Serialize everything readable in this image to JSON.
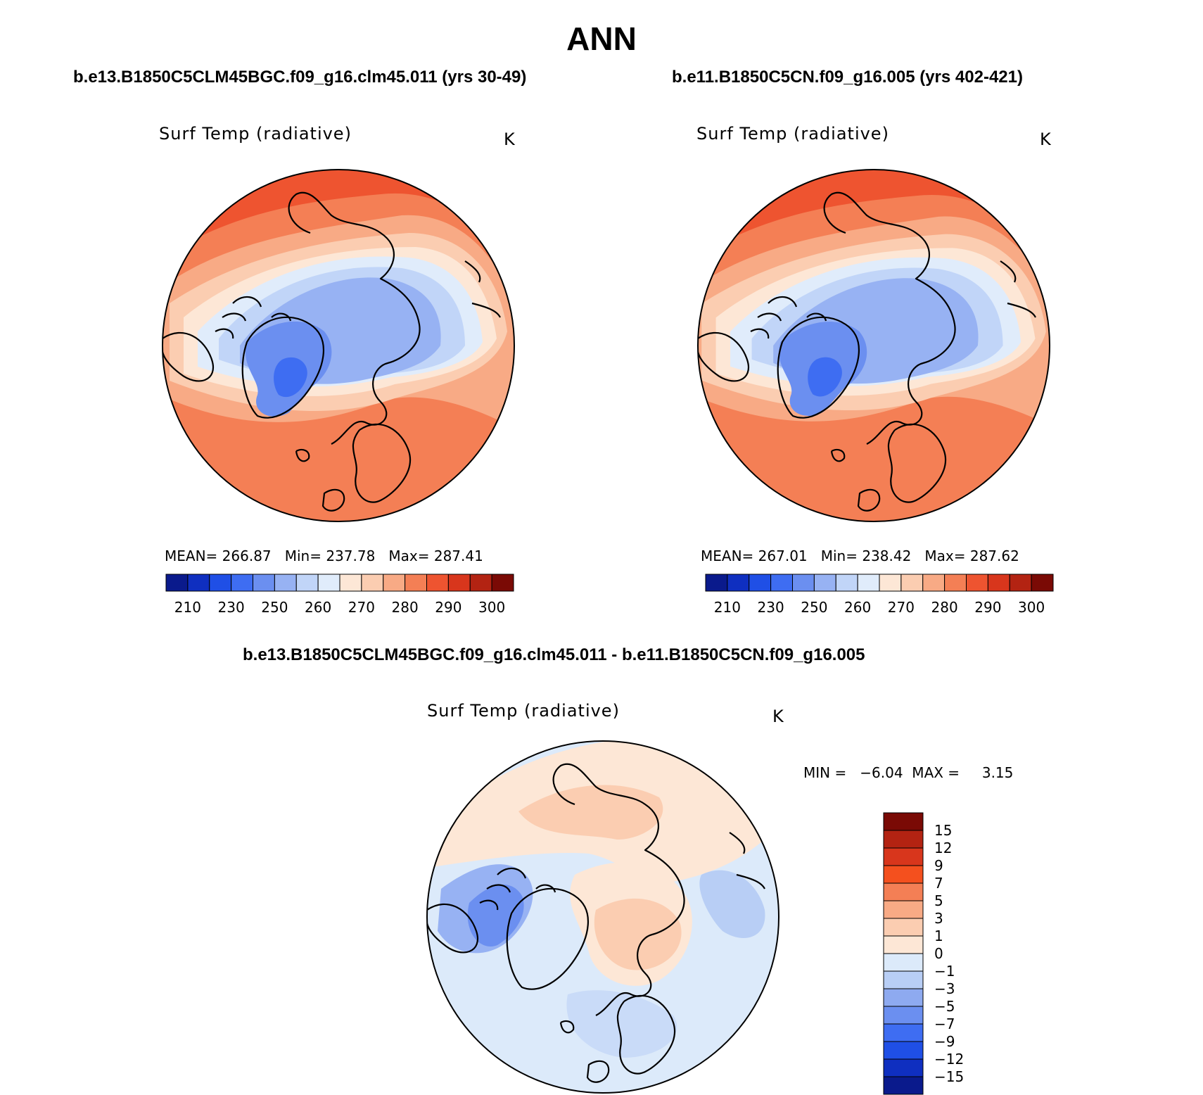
{
  "figure": {
    "title": "ANN",
    "variable_name": "Surf Temp (radiative)",
    "units": "K"
  },
  "panels": [
    {
      "case_title": "b.e13.B1850C5CLM45BGC.f09_g16.clm45.011 (yrs 30-49)",
      "stats": {
        "mean_label": "MEAN=",
        "mean": "266.87",
        "min_label": "Min=",
        "min": "237.78",
        "max_label": "Max=",
        "max": "287.41"
      }
    },
    {
      "case_title": "b.e11.B1850C5CN.f09_g16.005 (yrs 402-421)",
      "stats": {
        "mean_label": "MEAN=",
        "mean": "267.01",
        "min_label": "Min=",
        "min": "238.42",
        "max_label": "Max=",
        "max": "287.62"
      }
    }
  ],
  "difference": {
    "case_title": "b.e13.B1850C5CLM45BGC.f09_g16.clm45.011 - b.e11.B1850C5CN.f09_g16.005",
    "stats_text": "MIN =   −6.04  MAX =     3.15"
  },
  "colorbars": {
    "absolute": {
      "colors": [
        "#0a1a8c",
        "#0f2fc0",
        "#1f4fe6",
        "#3e6df2",
        "#6b8ff0",
        "#97b2f3",
        "#c1d5f8",
        "#e0ecfb",
        "#fde7d6",
        "#fbcdb1",
        "#f8aa85",
        "#f47f55",
        "#ee5430",
        "#d8361c",
        "#b32312",
        "#7a0a05"
      ],
      "labels": [
        "210",
        "230",
        "250",
        "260",
        "270",
        "280",
        "290",
        "300"
      ]
    },
    "difference": {
      "colors_top_to_bottom": [
        "#7a0a05",
        "#b32312",
        "#d8361c",
        "#f4501e",
        "#f47f55",
        "#f8aa85",
        "#fbcdb1",
        "#fde7d6",
        "#dceafa",
        "#b8cef5",
        "#8eaaf0",
        "#6b8ff0",
        "#3e6df2",
        "#1f4fe6",
        "#0f2fc0",
        "#0a1a8c"
      ],
      "labels_top_to_bottom": [
        "15",
        "12",
        "9",
        "7",
        "5",
        "3",
        "1",
        "0",
        "−1",
        "−3",
        "−5",
        "−7",
        "−9",
        "−12",
        "−15"
      ]
    }
  },
  "map_colors": {
    "warm_deep": "#ee5430",
    "warm_mid": "#f47f55",
    "warm_light": "#f8aa85",
    "warm_pale": "#fbcdb1",
    "neutral_warm": "#fde7d6",
    "neutral_cool": "#e0ecfb",
    "cool_light": "#c1d5f8",
    "cool_mid": "#97b2f3",
    "cool_deep": "#6b8ff0",
    "cool_deeper": "#3e6df2",
    "coastline": "#000000"
  }
}
